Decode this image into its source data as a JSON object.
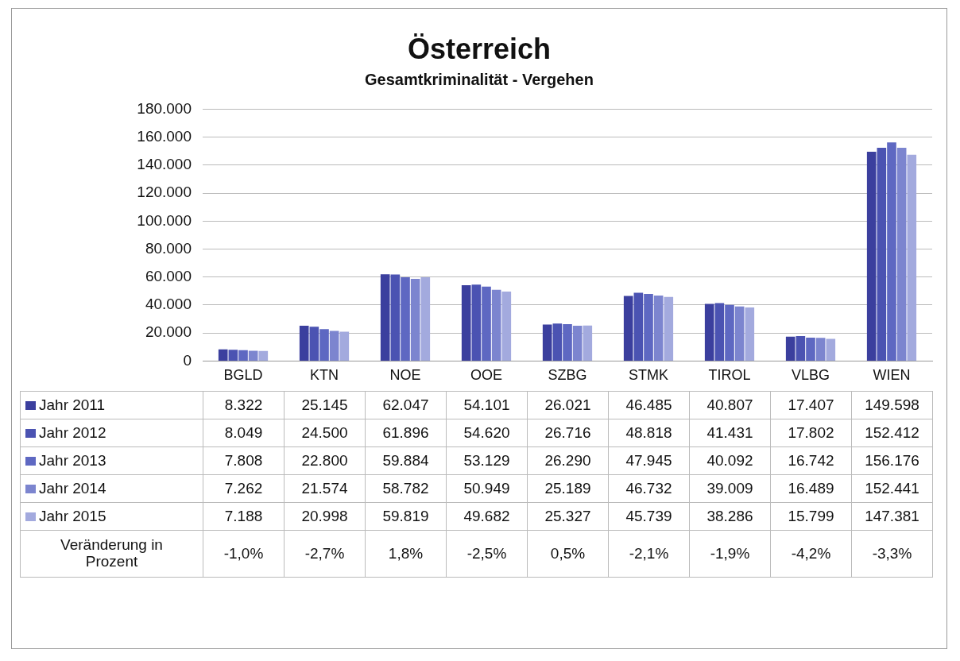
{
  "chart_data": {
    "type": "bar",
    "title": "Österreich",
    "subtitle": "Gesamtkriminalität - Vergehen",
    "categories": [
      "BGLD",
      "KTN",
      "NOE",
      "OOE",
      "SZBG",
      "STMK",
      "TIROL",
      "VLBG",
      "WIEN"
    ],
    "series": [
      {
        "name": "Jahr 2011",
        "color": "#3b3f9e",
        "values": [
          8322,
          25145,
          62047,
          54101,
          26021,
          46485,
          40807,
          17407,
          149598
        ],
        "value_labels": [
          "8.322",
          "25.145",
          "62.047",
          "54.101",
          "26.021",
          "46.485",
          "40.807",
          "17.407",
          "149.598"
        ]
      },
      {
        "name": "Jahr 2012",
        "color": "#4b53b2",
        "values": [
          8049,
          24500,
          61896,
          54620,
          26716,
          48818,
          41431,
          17802,
          152412
        ],
        "value_labels": [
          "8.049",
          "24.500",
          "61.896",
          "54.620",
          "26.716",
          "48.818",
          "41.431",
          "17.802",
          "152.412"
        ]
      },
      {
        "name": "Jahr 2013",
        "color": "#5e68c2",
        "values": [
          7808,
          22800,
          59884,
          53129,
          26290,
          47945,
          40092,
          16742,
          156176
        ],
        "value_labels": [
          "7.808",
          "22.800",
          "59.884",
          "53.129",
          "26.290",
          "47.945",
          "40.092",
          "16.742",
          "156.176"
        ]
      },
      {
        "name": "Jahr 2014",
        "color": "#7c85cf",
        "values": [
          7262,
          21574,
          58782,
          50949,
          25189,
          46732,
          39009,
          16489,
          152441
        ],
        "value_labels": [
          "7.262",
          "21.574",
          "58.782",
          "50.949",
          "25.189",
          "46.732",
          "39.009",
          "16.489",
          "152.441"
        ]
      },
      {
        "name": "Jahr 2015",
        "color": "#a3aade",
        "values": [
          7188,
          20998,
          59819,
          49682,
          25327,
          45739,
          38286,
          15799,
          147381
        ],
        "value_labels": [
          "7.188",
          "20.998",
          "59.819",
          "49.682",
          "25.327",
          "45.739",
          "38.286",
          "15.799",
          "147.381"
        ]
      }
    ],
    "ylim": [
      0,
      180000
    ],
    "yticks": [
      0,
      {
        "value": 20000,
        "label": "20.000"
      },
      {
        "value": 40000,
        "label": "40.000"
      },
      {
        "value": 60000,
        "label": "60.000"
      },
      {
        "value": 80000,
        "label": "80.000"
      },
      {
        "value": 100000,
        "label": "100.000"
      },
      {
        "value": 120000,
        "label": "120.000"
      },
      {
        "value": 140000,
        "label": "140.000"
      },
      {
        "value": 160000,
        "label": "160.000"
      },
      {
        "value": 180000,
        "label": "180.000"
      }
    ],
    "grid": "y",
    "legend": "bottom",
    "annotations": [
      "Veränderung in Prozent",
      "-1,0%",
      "-2,7%",
      "1,8%",
      "-2,5%",
      "0,5%",
      "-2,1%",
      "-1,9%",
      "-4,2%",
      "-3,3%"
    ]
  }
}
